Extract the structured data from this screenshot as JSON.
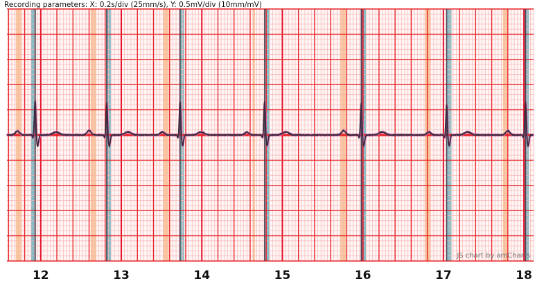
{
  "header": {
    "recording_parameters": "Recording parameters: X: 0.2s/div (25mm/s), Y: 0.5mV/div (10mm/mV)"
  },
  "credit": "JS chart by amCharts",
  "colors": {
    "major_grid": "#e8262b",
    "minor_grid": "#f7b3b3",
    "baseline_band": "#e8262b",
    "trace_dark": "#3a2a3e",
    "trace_light": "#ef79c6",
    "band_orange": "#f3a455",
    "band_teal": "#4fa7b2",
    "qrs_marker": "#3a2a3e"
  },
  "chart_data": {
    "type": "line",
    "title": "",
    "xlabel": "",
    "ylabel": "",
    "x_unit": "s",
    "y_unit": "mV",
    "xlim": [
      11.58,
      18.12
    ],
    "ylim": [
      -2.5,
      2.5
    ],
    "x_major_step": 0.2,
    "y_major_step": 0.5,
    "x_ticks": [
      12,
      13,
      14,
      15,
      16,
      17,
      18
    ],
    "grid": true,
    "beats": [
      {
        "r_time": 11.93,
        "r_peak": 0.7,
        "p_wave": 0.08,
        "orange_band": [
          11.69,
          11.76
        ],
        "teal_band": [
          11.88,
          11.94
        ]
      },
      {
        "r_time": 12.82,
        "r_peak": 0.65,
        "p_wave": 0.09,
        "orange_band": [
          12.62,
          12.69
        ],
        "teal_band": [
          12.81,
          12.87
        ]
      },
      {
        "r_time": 13.73,
        "r_peak": 0.68,
        "p_wave": 0.06,
        "orange_band": [
          13.52,
          13.59
        ],
        "teal_band": [
          13.72,
          13.78
        ]
      },
      {
        "r_time": 14.78,
        "r_peak": 0.68,
        "p_wave": 0.06,
        "orange_band": [
          14.63,
          14.66
        ],
        "teal_band": [
          14.78,
          14.84
        ]
      },
      {
        "r_time": 15.98,
        "r_peak": 0.65,
        "p_wave": 0.09,
        "orange_band": [
          15.72,
          15.79
        ],
        "teal_band": [
          15.98,
          16.04
        ]
      },
      {
        "r_time": 17.04,
        "r_peak": 0.62,
        "p_wave": 0.06,
        "orange_band": [
          16.77,
          16.84
        ],
        "teal_band": [
          17.04,
          17.1
        ]
      },
      {
        "r_time": 18.02,
        "r_peak": 0.66,
        "p_wave": 0.08,
        "orange_band": [
          17.74,
          17.8
        ],
        "teal_band": [
          18.0,
          18.06
        ]
      }
    ],
    "series": [
      {
        "key": "lead_dark"
      },
      {
        "key": "lead_light"
      }
    ]
  }
}
